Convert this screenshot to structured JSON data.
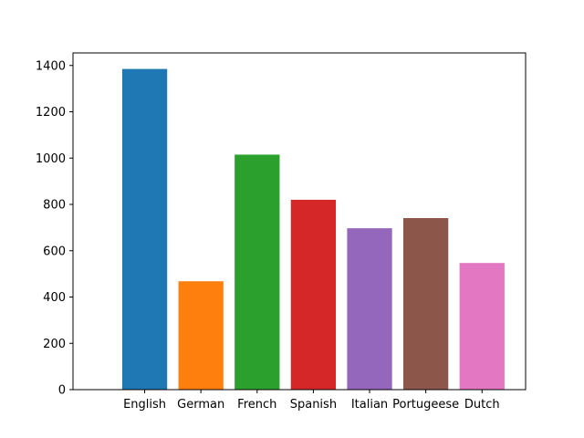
{
  "chart_data": {
    "type": "bar",
    "title": "",
    "xlabel": "",
    "ylabel": "",
    "categories": [
      "English",
      "German",
      "French",
      "Spanish",
      "Italian",
      "Portugeese",
      "Dutch"
    ],
    "values": [
      1385,
      468,
      1015,
      820,
      697,
      741,
      547
    ],
    "colors": [
      "#1f77b4",
      "#ff7f0e",
      "#2ca02c",
      "#d62728",
      "#9467bd",
      "#8c564b",
      "#e377c2"
    ],
    "ylim": [
      0,
      1400
    ],
    "yticks": [
      0,
      200,
      400,
      600,
      800,
      1000,
      1200,
      1400
    ],
    "ytick_labels": [
      "0",
      "200",
      "400",
      "600",
      "800",
      "1000",
      "1200",
      "1400"
    ],
    "grid": false,
    "legend": "none"
  }
}
